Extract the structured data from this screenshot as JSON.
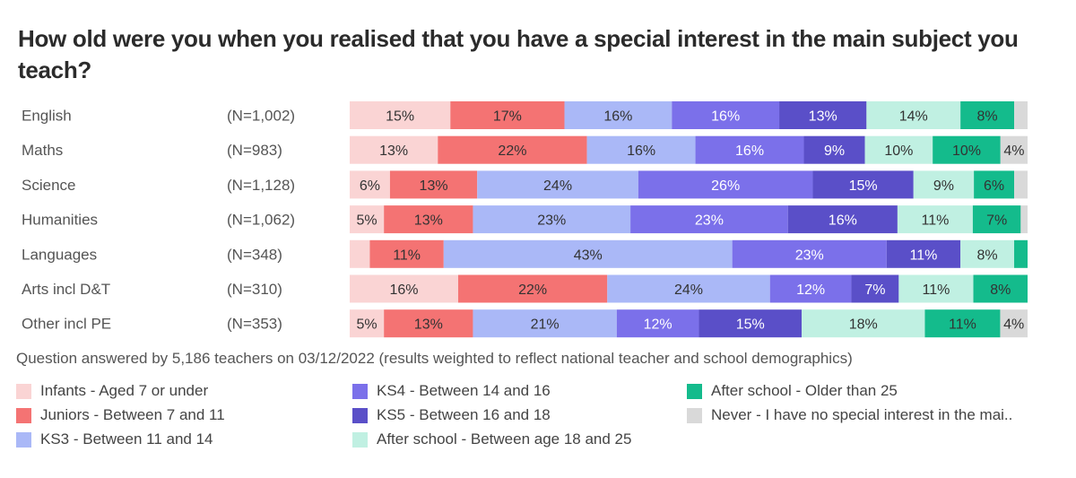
{
  "title": "How old were you when you realised that you have a special interest in the main subject you teach?",
  "caption": "Question answered by 5,186 teachers on 03/12/2022 (results weighted to reflect national teacher and school demographics)",
  "legend": [
    {
      "label": "Infants - Aged 7 or under",
      "color": "#fad4d4"
    },
    {
      "label": "Juniors - Between 7 and 11",
      "color": "#f47373"
    },
    {
      "label": "KS3 - Between 11 and 14",
      "color": "#aab8f7"
    },
    {
      "label": "KS4 - Between 14 and 16",
      "color": "#7b70ea"
    },
    {
      "label": "KS5 - Between 16 and 18",
      "color": "#5a4fc8"
    },
    {
      "label": "After school - Between age 18 and 25",
      "color": "#c0f0e2"
    },
    {
      "label": "After school - Older than 25",
      "color": "#14bb8c"
    },
    {
      "label": "Never - I have no special interest in the mai..",
      "color": "#d9d9d9"
    }
  ],
  "chart_data": {
    "type": "bar",
    "orientation": "horizontal",
    "stacked": true,
    "percent": true,
    "categories": [
      "English",
      "Maths",
      "Science",
      "Humanities",
      "Languages",
      "Arts incl D&T",
      "Other incl PE"
    ],
    "sample_sizes": [
      "(N=1,002)",
      "(N=983)",
      "(N=1,128)",
      "(N=1,062)",
      "(N=348)",
      "(N=310)",
      "(N=353)"
    ],
    "series": [
      {
        "name": "Infants - Aged 7 or under",
        "values": [
          15,
          13,
          6,
          5,
          3,
          16,
          5
        ],
        "labels": [
          "15%",
          "13%",
          "6%",
          "5%",
          "",
          "16%",
          "5%"
        ]
      },
      {
        "name": "Juniors - Between 7 and 11",
        "values": [
          17,
          22,
          13,
          13,
          11,
          22,
          13
        ],
        "labels": [
          "17%",
          "22%",
          "13%",
          "13%",
          "11%",
          "22%",
          "13%"
        ]
      },
      {
        "name": "KS3 - Between 11 and 14",
        "values": [
          16,
          16,
          24,
          23,
          43,
          24,
          21
        ],
        "labels": [
          "16%",
          "16%",
          "24%",
          "23%",
          "43%",
          "24%",
          "21%"
        ]
      },
      {
        "name": "KS4 - Between 14 and 16",
        "values": [
          16,
          16,
          26,
          23,
          23,
          12,
          12
        ],
        "labels": [
          "16%",
          "16%",
          "26%",
          "23%",
          "23%",
          "12%",
          "12%"
        ]
      },
      {
        "name": "KS5 - Between 16 and 18",
        "values": [
          13,
          9,
          15,
          16,
          11,
          7,
          15
        ],
        "labels": [
          "13%",
          "9%",
          "15%",
          "16%",
          "11%",
          "7%",
          "15%"
        ]
      },
      {
        "name": "After school - Between age 18 and 25",
        "values": [
          14,
          10,
          9,
          11,
          8,
          11,
          18
        ],
        "labels": [
          "14%",
          "10%",
          "9%",
          "11%",
          "8%",
          "11%",
          "18%"
        ]
      },
      {
        "name": "After school - Older than 25",
        "values": [
          8,
          10,
          6,
          7,
          2,
          8,
          11
        ],
        "labels": [
          "8%",
          "10%",
          "6%",
          "7%",
          "",
          "8%",
          "11%"
        ]
      },
      {
        "name": "Never - I have no special interest in the mai..",
        "values": [
          2,
          4,
          2,
          1,
          0,
          0,
          4
        ],
        "labels": [
          "",
          "4%",
          "",
          "",
          "",
          "",
          "4%"
        ]
      }
    ]
  }
}
